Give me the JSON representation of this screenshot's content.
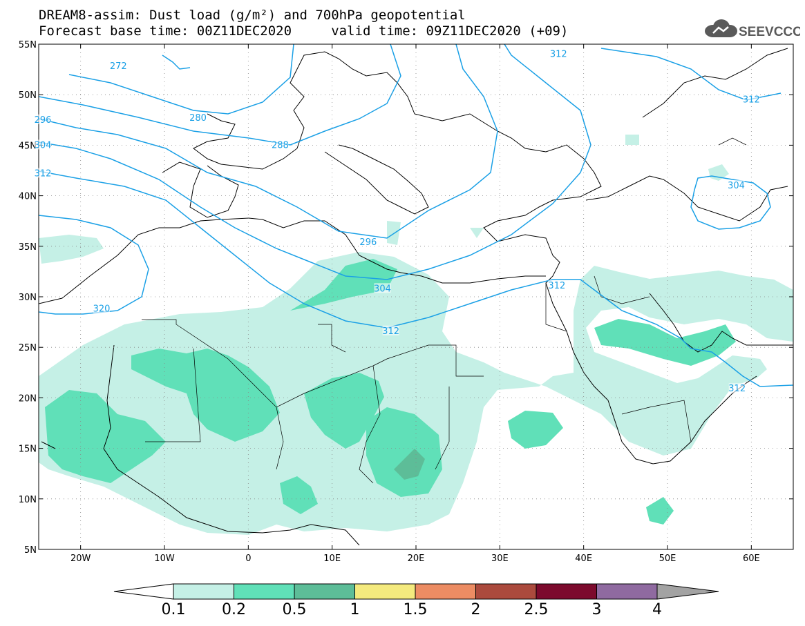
{
  "title_line1": "DREAM8-assim: Dust load (g/m²) and 700hPa geopotential",
  "title_line2": "Forecast base time: 00Z11DEC2020     valid time: 09Z11DEC2020 (+09)",
  "logo": {
    "icon": "cloud-icon",
    "text": "SEEVCCC"
  },
  "map": {
    "projection": "lat-lon",
    "lon_range": [
      -25,
      65
    ],
    "lat_range": [
      5,
      55
    ],
    "lon_ticks": [
      {
        "value": -20,
        "label": "20W"
      },
      {
        "value": -10,
        "label": "10W"
      },
      {
        "value": 0,
        "label": "0"
      },
      {
        "value": 10,
        "label": "10E"
      },
      {
        "value": 20,
        "label": "20E"
      },
      {
        "value": 30,
        "label": "30E"
      },
      {
        "value": 40,
        "label": "40E"
      },
      {
        "value": 50,
        "label": "50E"
      },
      {
        "value": 60,
        "label": "60E"
      }
    ],
    "lat_ticks": [
      {
        "value": 55,
        "label": "55N"
      },
      {
        "value": 50,
        "label": "50N"
      },
      {
        "value": 45,
        "label": "45N"
      },
      {
        "value": 40,
        "label": "40N"
      },
      {
        "value": 35,
        "label": "35N"
      },
      {
        "value": 30,
        "label": "30N"
      },
      {
        "value": 25,
        "label": "25N"
      },
      {
        "value": 20,
        "label": "20N"
      },
      {
        "value": 15,
        "label": "15N"
      },
      {
        "value": 10,
        "label": "10N"
      },
      {
        "value": 5,
        "label": "5N"
      }
    ],
    "grid": "dotted",
    "contour_color": "#1aa0e6",
    "contour_labels": [
      {
        "text": "272",
        "lon": -15.5,
        "lat": 52.8
      },
      {
        "text": "280",
        "lon": -6.0,
        "lat": 47.7
      },
      {
        "text": "288",
        "lon": 3.8,
        "lat": 45.0
      },
      {
        "text": "296",
        "lon": -24.5,
        "lat": 47.5
      },
      {
        "text": "304",
        "lon": -24.5,
        "lat": 45.0
      },
      {
        "text": "312",
        "lon": -24.5,
        "lat": 42.2
      },
      {
        "text": "320",
        "lon": -17.5,
        "lat": 28.8
      },
      {
        "text": "296",
        "lon": 14.3,
        "lat": 35.4
      },
      {
        "text": "304",
        "lon": 16.0,
        "lat": 30.8
      },
      {
        "text": "312",
        "lon": 17.0,
        "lat": 26.6
      },
      {
        "text": "312",
        "lon": 36.8,
        "lat": 31.1
      },
      {
        "text": "312",
        "lon": 37.0,
        "lat": 54.0
      },
      {
        "text": "312",
        "lon": 60.0,
        "lat": 49.5
      },
      {
        "text": "304",
        "lon": 58.2,
        "lat": 41.0
      },
      {
        "text": "312",
        "lon": 58.3,
        "lat": 20.9
      }
    ]
  },
  "colorbar": {
    "levels": [
      "0.1",
      "0.2",
      "0.5",
      "1",
      "1.5",
      "2",
      "2.5",
      "3",
      "4"
    ],
    "colors": [
      "#ffffff",
      "#c5f0e6",
      "#60e0b8",
      "#5dbd98",
      "#f4ea7e",
      "#ec8c63",
      "#ab4a3d",
      "#7c0a2d",
      "#8f6aa0",
      "#a3a3a3"
    ]
  }
}
